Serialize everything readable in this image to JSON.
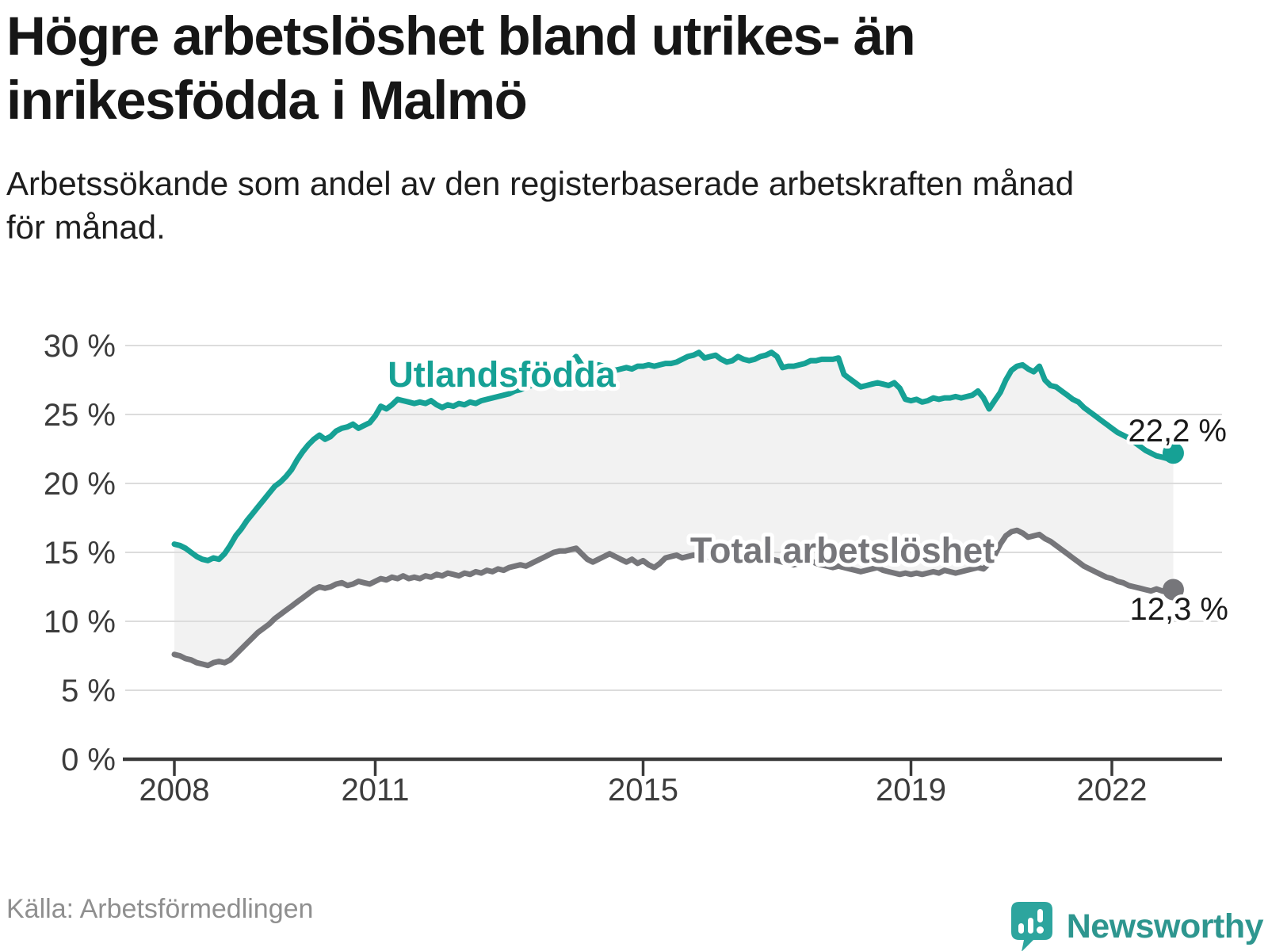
{
  "header": {
    "title_lines": [
      "Högre arbetslöshet bland utrikes- än",
      "inrikesfödda i Malmö"
    ],
    "subtitle_lines": [
      "Arbetssökande som andel av den registerbaserade arbetskraften månad",
      "för månad."
    ]
  },
  "footer": {
    "source": "Källa: Arbetsförmedlingen",
    "brand": "Newsworthy"
  },
  "chart_data": {
    "type": "line",
    "title": "Högre arbetslöshet bland utrikes- än inrikesfödda i Malmö",
    "subtitle": "Arbetssökande som andel av den registerbaserade arbetskraften månad för månad.",
    "unit": "%",
    "frequency": "monthly",
    "x_start": "2008-01",
    "x_end": "2022-12",
    "ylim": [
      0,
      30
    ],
    "grid": true,
    "band_fill_between_series": true,
    "colors": {
      "accent_teal": "#16a195",
      "gray_line": "#76767a",
      "band_fill": "#f2f2f2",
      "gridline": "#dcdcdc",
      "axis": "#3a3a3a",
      "text_dark": "#1a1a1a"
    },
    "ytick_labels": [
      "0 %",
      "5 %",
      "10 %",
      "15 %",
      "20 %",
      "25 %",
      "30 %"
    ],
    "xtick_years": [
      2008,
      2011,
      2015,
      2019,
      2022
    ],
    "series": [
      {
        "name": "Utlandsfödda",
        "color": "#16a195",
        "end_label": "22,2 %",
        "final_value": 22.2,
        "values": [
          15.6,
          15.5,
          15.3,
          15.0,
          14.7,
          14.5,
          14.4,
          14.6,
          14.5,
          14.9,
          15.5,
          16.2,
          16.7,
          17.3,
          17.8,
          18.3,
          18.8,
          19.3,
          19.8,
          20.1,
          20.5,
          21.0,
          21.7,
          22.3,
          22.8,
          23.2,
          23.5,
          23.2,
          23.4,
          23.8,
          24.0,
          24.1,
          24.3,
          24.0,
          24.2,
          24.4,
          24.9,
          25.6,
          25.4,
          25.7,
          26.1,
          26.0,
          25.9,
          25.8,
          25.9,
          25.8,
          26.0,
          25.7,
          25.5,
          25.7,
          25.6,
          25.8,
          25.7,
          25.9,
          25.8,
          26.0,
          26.1,
          26.2,
          26.3,
          26.4,
          26.5,
          26.7,
          26.8,
          27.0,
          27.1,
          27.3,
          27.4,
          27.6,
          27.7,
          27.9,
          28.2,
          28.8,
          29.2,
          28.6,
          28.3,
          28.4,
          28.6,
          28.5,
          28.4,
          28.2,
          28.3,
          28.4,
          28.3,
          28.5,
          28.5,
          28.6,
          28.5,
          28.6,
          28.7,
          28.7,
          28.8,
          29.0,
          29.2,
          29.3,
          29.5,
          29.1,
          29.2,
          29.3,
          29.0,
          28.8,
          28.9,
          29.2,
          29.0,
          28.9,
          29.0,
          29.2,
          29.3,
          29.5,
          29.2,
          28.4,
          28.5,
          28.5,
          28.6,
          28.7,
          28.9,
          28.9,
          29.0,
          29.0,
          29.0,
          29.1,
          27.9,
          27.6,
          27.3,
          27.0,
          27.1,
          27.2,
          27.3,
          27.2,
          27.1,
          27.3,
          26.9,
          26.1,
          26.0,
          26.1,
          25.9,
          26.0,
          26.2,
          26.1,
          26.2,
          26.2,
          26.3,
          26.2,
          26.3,
          26.4,
          26.7,
          26.2,
          25.4,
          26.0,
          26.6,
          27.5,
          28.2,
          28.5,
          28.6,
          28.3,
          28.1,
          28.5,
          27.5,
          27.1,
          27.0,
          26.7,
          26.4,
          26.1,
          25.9,
          25.5,
          25.2,
          24.9,
          24.6,
          24.3,
          24.0,
          23.7,
          23.5,
          23.3,
          23.0,
          22.7,
          22.4,
          22.2,
          22.0,
          21.9,
          21.8,
          22.2
        ]
      },
      {
        "name": "Total arbetslöshet",
        "color": "#76767a",
        "end_label": "12,3 %",
        "final_value": 12.3,
        "values": [
          7.6,
          7.5,
          7.3,
          7.2,
          7.0,
          6.9,
          6.8,
          7.0,
          7.1,
          7.0,
          7.2,
          7.6,
          8.0,
          8.4,
          8.8,
          9.2,
          9.5,
          9.8,
          10.2,
          10.5,
          10.8,
          11.1,
          11.4,
          11.7,
          12.0,
          12.3,
          12.5,
          12.4,
          12.5,
          12.7,
          12.8,
          12.6,
          12.7,
          12.9,
          12.8,
          12.7,
          12.9,
          13.1,
          13.0,
          13.2,
          13.1,
          13.3,
          13.1,
          13.2,
          13.1,
          13.3,
          13.2,
          13.4,
          13.3,
          13.5,
          13.4,
          13.3,
          13.5,
          13.4,
          13.6,
          13.5,
          13.7,
          13.6,
          13.8,
          13.7,
          13.9,
          14.0,
          14.1,
          14.0,
          14.2,
          14.4,
          14.6,
          14.8,
          15.0,
          15.1,
          15.1,
          15.2,
          15.3,
          14.9,
          14.5,
          14.3,
          14.5,
          14.7,
          14.9,
          14.7,
          14.5,
          14.3,
          14.5,
          14.2,
          14.4,
          14.1,
          13.9,
          14.2,
          14.6,
          14.7,
          14.8,
          14.6,
          14.7,
          14.8,
          14.7,
          14.6,
          14.7,
          14.6,
          14.5,
          14.4,
          14.5,
          14.6,
          14.7,
          14.5,
          14.4,
          14.5,
          14.4,
          14.5,
          14.4,
          14.3,
          14.2,
          14.1,
          14.2,
          14.3,
          14.4,
          14.2,
          14.1,
          14.0,
          13.9,
          14.0,
          13.9,
          13.8,
          13.7,
          13.6,
          13.7,
          13.8,
          13.9,
          13.7,
          13.6,
          13.5,
          13.4,
          13.5,
          13.4,
          13.5,
          13.4,
          13.5,
          13.6,
          13.5,
          13.7,
          13.6,
          13.5,
          13.6,
          13.7,
          13.8,
          13.9,
          13.8,
          14.2,
          14.8,
          15.6,
          16.2,
          16.5,
          16.6,
          16.4,
          16.1,
          16.2,
          16.3,
          16.0,
          15.8,
          15.5,
          15.2,
          14.9,
          14.6,
          14.3,
          14.0,
          13.8,
          13.6,
          13.4,
          13.2,
          13.1,
          12.9,
          12.8,
          12.6,
          12.5,
          12.4,
          12.3,
          12.2,
          12.35,
          12.2,
          12.1,
          12.3
        ]
      }
    ]
  }
}
